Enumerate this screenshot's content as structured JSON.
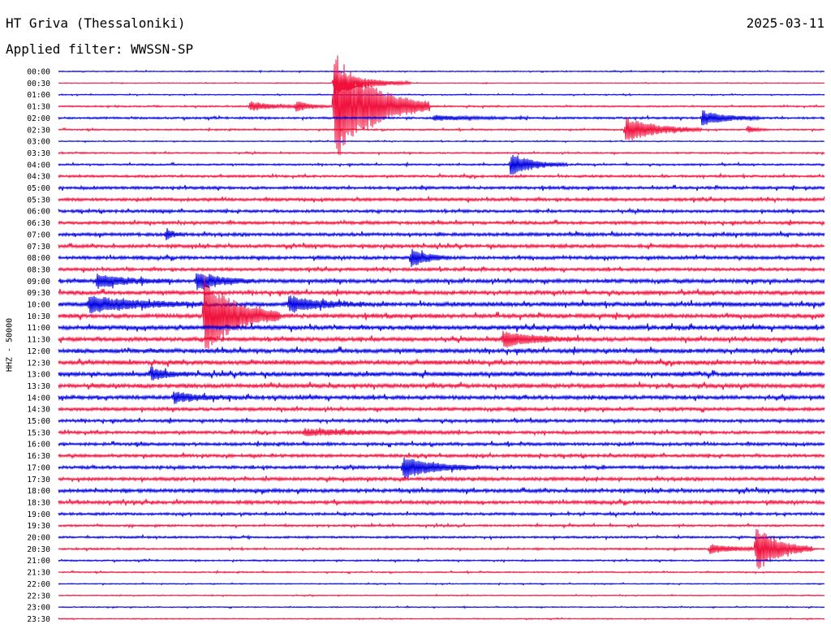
{
  "header": {
    "station": "HT Griva (Thessaloniki)",
    "date": "2025-03-11",
    "filter": "Applied filter: WWSSN-SP"
  },
  "chart_data": {
    "type": "helicorder",
    "ylabel": "HHZ - 50000",
    "row_labels": [
      "00:00",
      "00:30",
      "01:00",
      "01:30",
      "02:00",
      "02:30",
      "03:00",
      "03:30",
      "04:00",
      "04:30",
      "05:00",
      "05:30",
      "06:00",
      "06:30",
      "07:00",
      "07:30",
      "08:00",
      "08:30",
      "09:00",
      "09:30",
      "10:00",
      "10:30",
      "11:00",
      "11:30",
      "12:00",
      "12:30",
      "13:00",
      "13:30",
      "14:00",
      "14:30",
      "15:00",
      "15:30",
      "16:00",
      "16:30",
      "17:00",
      "17:30",
      "18:00",
      "18:30",
      "19:00",
      "19:30",
      "20:00",
      "20:30",
      "21:00",
      "21:30",
      "22:00",
      "22:30",
      "23:00",
      "23:30"
    ],
    "colors": [
      "#0000e0",
      "#f0103c"
    ],
    "noise_level": [
      0.4,
      0.3,
      0.4,
      0.6,
      0.8,
      0.6,
      0.4,
      0.6,
      0.7,
      0.9,
      1.1,
      1.2,
      1.1,
      1.2,
      1.3,
      1.3,
      1.3,
      1.2,
      1.5,
      1.5,
      1.7,
      1.6,
      1.7,
      1.6,
      1.7,
      1.7,
      1.7,
      1.6,
      1.5,
      1.3,
      1.2,
      1.2,
      1.2,
      1.2,
      1.2,
      1.3,
      1.4,
      1.3,
      1.0,
      0.8,
      0.8,
      0.7,
      0.6,
      0.5,
      0.4,
      0.4,
      0.4,
      0.4
    ],
    "events": [
      {
        "row": 1,
        "t": 0.36,
        "amp": 15,
        "dur": 0.04
      },
      {
        "row": 3,
        "t": 0.36,
        "amp": 70,
        "dur": 0.05
      },
      {
        "row": 3,
        "t": 0.25,
        "amp": 6,
        "dur": 0.03
      },
      {
        "row": 3,
        "t": 0.31,
        "amp": 6,
        "dur": 0.02
      },
      {
        "row": 4,
        "t": 0.49,
        "amp": 3,
        "dur": 0.05
      },
      {
        "row": 4,
        "t": 0.84,
        "amp": 10,
        "dur": 0.03
      },
      {
        "row": 5,
        "t": 0.74,
        "amp": 16,
        "dur": 0.04
      },
      {
        "row": 5,
        "t": 0.9,
        "amp": 5,
        "dur": 0.01
      },
      {
        "row": 8,
        "t": 0.59,
        "amp": 14,
        "dur": 0.03
      },
      {
        "row": 14,
        "t": 0.14,
        "amp": 8,
        "dur": 0.01
      },
      {
        "row": 16,
        "t": 0.46,
        "amp": 12,
        "dur": 0.02
      },
      {
        "row": 18,
        "t": 0.05,
        "amp": 8,
        "dur": 0.04
      },
      {
        "row": 18,
        "t": 0.18,
        "amp": 12,
        "dur": 0.03
      },
      {
        "row": 20,
        "t": 0.04,
        "amp": 10,
        "dur": 0.06
      },
      {
        "row": 20,
        "t": 0.3,
        "amp": 10,
        "dur": 0.04
      },
      {
        "row": 21,
        "t": 0.19,
        "amp": 50,
        "dur": 0.04
      },
      {
        "row": 23,
        "t": 0.58,
        "amp": 10,
        "dur": 0.04
      },
      {
        "row": 26,
        "t": 0.12,
        "amp": 8,
        "dur": 0.02
      },
      {
        "row": 28,
        "t": 0.15,
        "amp": 7,
        "dur": 0.03
      },
      {
        "row": 31,
        "t": 0.32,
        "amp": 4,
        "dur": 0.08
      },
      {
        "row": 34,
        "t": 0.45,
        "amp": 14,
        "dur": 0.04
      },
      {
        "row": 41,
        "t": 0.85,
        "amp": 6,
        "dur": 0.03
      },
      {
        "row": 41,
        "t": 0.91,
        "amp": 30,
        "dur": 0.03
      }
    ]
  }
}
